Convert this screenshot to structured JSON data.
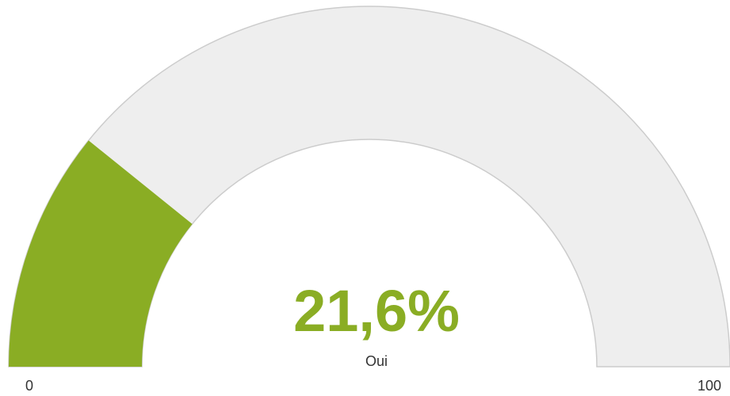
{
  "chart_data": {
    "type": "gauge",
    "value": 21.6,
    "value_label": "21,6%",
    "label": "Oui",
    "ylim": [
      0,
      100
    ],
    "yticks": [
      0,
      100
    ],
    "color": "#8aad24",
    "track_color": "#eeeeee"
  }
}
